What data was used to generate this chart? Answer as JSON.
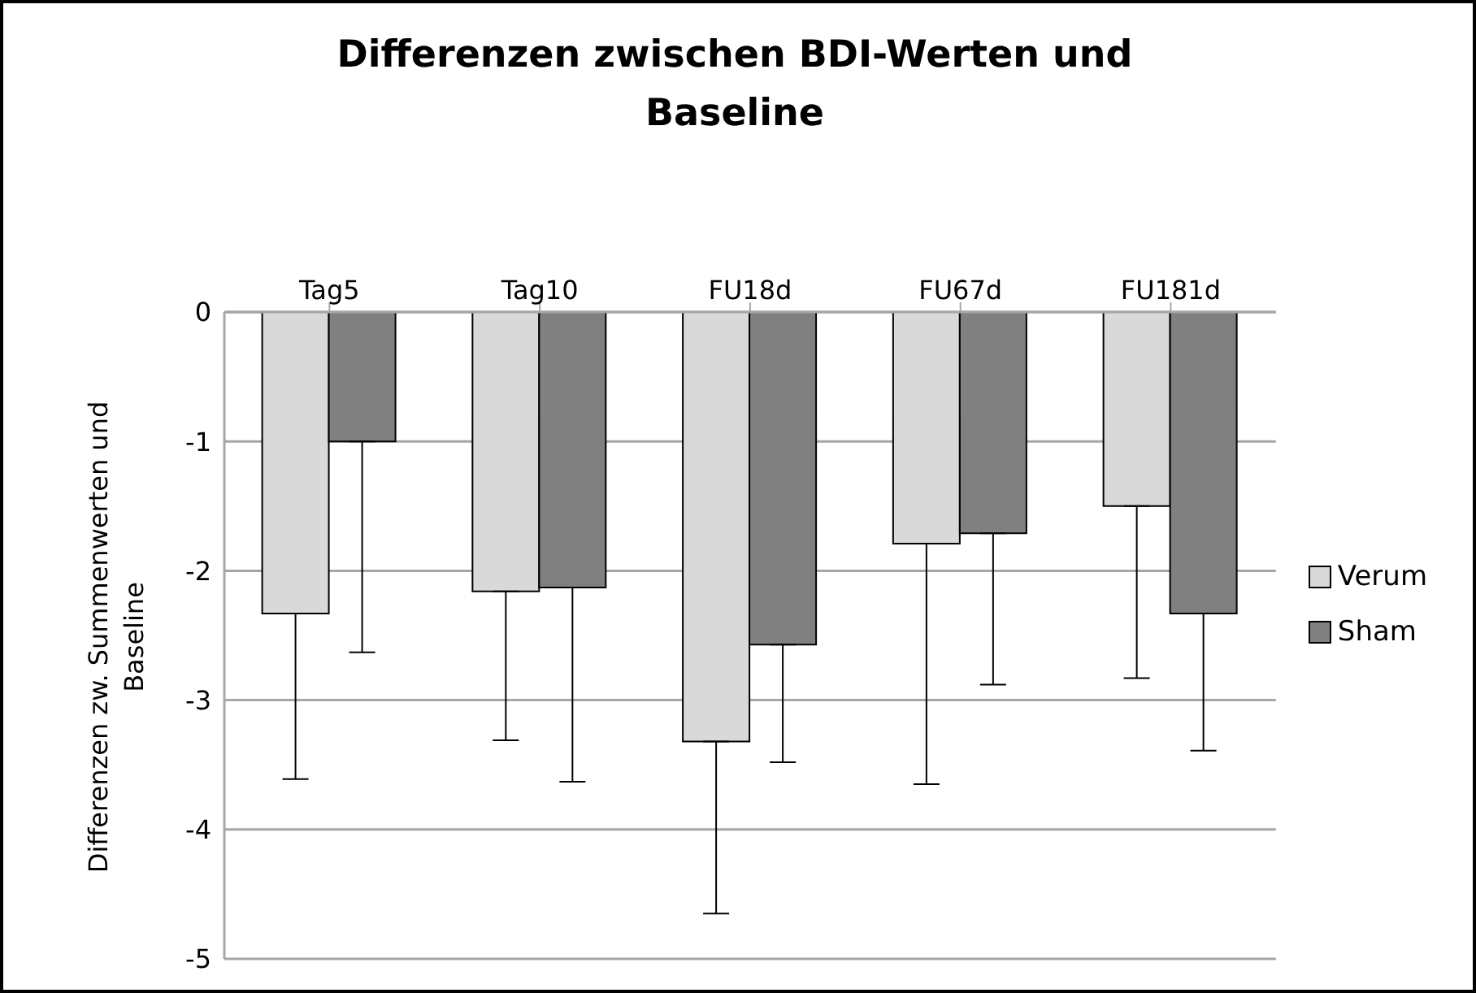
{
  "chart_data": {
    "type": "bar",
    "title": "Differenzen zwischen BDI-Werten und Baseline",
    "ylabel": "Differenzen zw. Summenwerten und Baseline",
    "categories": [
      "Tag5",
      "Tag10",
      "FU18d",
      "FU67d",
      "FU181d"
    ],
    "series": [
      {
        "name": "Verum",
        "color": "#d9d9d9",
        "values": [
          -2.33,
          -2.16,
          -3.32,
          -1.79,
          -1.5
        ],
        "errors": [
          [
            -3.61,
            -2.33
          ],
          [
            -3.31,
            -2.16
          ],
          [
            -4.65,
            -3.32
          ],
          [
            -3.65,
            -1.79
          ],
          [
            -2.83,
            -1.5
          ]
        ]
      },
      {
        "name": "Sham",
        "color": "#808080",
        "values": [
          -1.0,
          -2.13,
          -2.57,
          -1.71,
          -2.33
        ],
        "errors": [
          [
            -2.63,
            -1.0
          ],
          [
            -3.63,
            -2.13
          ],
          [
            -3.48,
            -2.57
          ],
          [
            -2.88,
            -1.71
          ],
          [
            -3.39,
            -2.33
          ]
        ]
      }
    ],
    "ylim": [
      -5,
      0
    ],
    "yticks": [
      -5,
      -4,
      -3,
      -2,
      -1,
      0
    ],
    "grid": "y",
    "legend": "right"
  }
}
